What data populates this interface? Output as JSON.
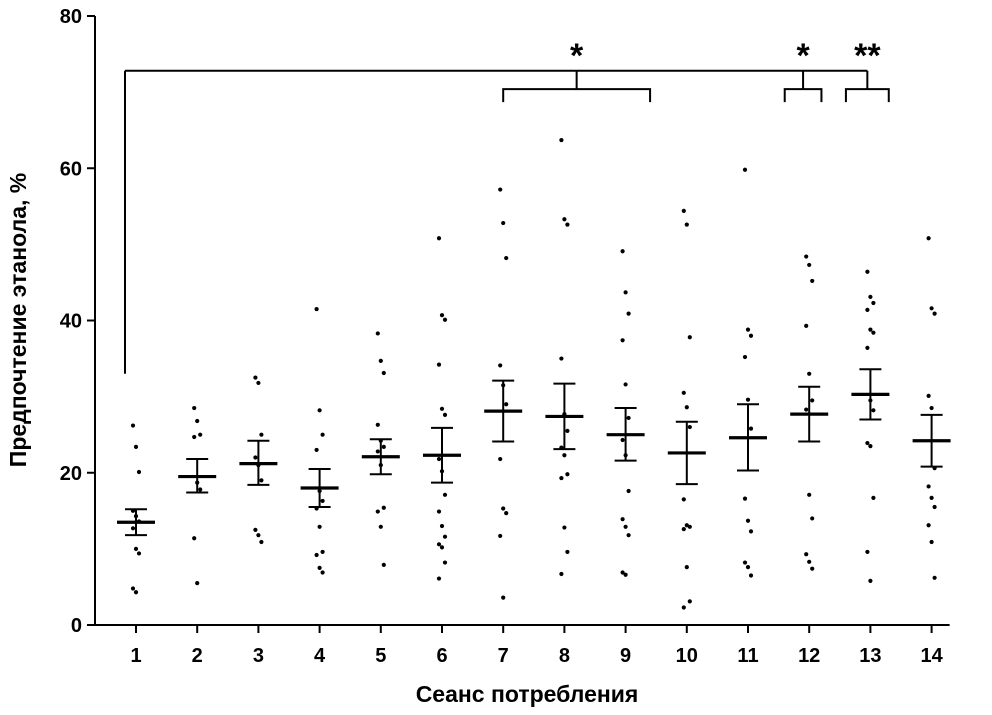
{
  "chart_data": {
    "type": "scatter",
    "xlabel": "Сеанс потребления",
    "ylabel": "Предпочтение этанола, %",
    "ylim": [
      0,
      80
    ],
    "yticks": [
      "0",
      "20",
      "40",
      "60",
      "80"
    ],
    "categories": [
      "1",
      "2",
      "3",
      "4",
      "5",
      "6",
      "7",
      "8",
      "9",
      "10",
      "11",
      "12",
      "13",
      "14"
    ],
    "means": [
      13.5,
      19.5,
      21.2,
      18.0,
      22.1,
      22.3,
      28.1,
      27.4,
      25.0,
      22.6,
      24.6,
      27.7,
      30.3,
      24.2
    ],
    "sem_upper": [
      15.2,
      21.8,
      24.2,
      20.5,
      24.4,
      25.9,
      32.1,
      31.7,
      28.5,
      26.7,
      29.0,
      31.3,
      33.6,
      27.6
    ],
    "sem_lower": [
      11.8,
      17.4,
      18.4,
      15.5,
      19.8,
      18.7,
      24.1,
      23.1,
      21.6,
      18.5,
      20.3,
      24.1,
      27.0,
      20.8
    ],
    "points": [
      [
        26.2,
        23.4,
        20.1,
        15.0,
        14.3,
        13.6,
        12.7,
        10.0,
        9.4,
        4.8,
        4.3
      ],
      [
        28.5,
        26.8,
        25.0,
        24.7,
        18.7,
        17.8,
        11.4,
        5.5
      ],
      [
        32.5,
        31.8,
        25.0,
        22.0,
        21.0,
        19.0,
        12.5,
        11.8,
        10.9
      ],
      [
        41.5,
        28.2,
        25.0,
        23.0,
        17.6,
        16.3,
        15.3,
        12.9,
        9.6,
        9.2,
        7.5,
        6.9
      ],
      [
        38.3,
        34.7,
        33.1,
        26.3,
        24.2,
        23.4,
        22.8,
        21.0,
        15.4,
        14.9,
        12.9,
        7.9
      ],
      [
        50.8,
        40.7,
        40.1,
        34.2,
        28.4,
        27.6,
        21.8,
        20.2,
        17.1,
        14.9,
        13.0,
        11.6,
        10.6,
        10.2,
        8.2,
        6.1
      ],
      [
        57.2,
        52.8,
        48.2,
        34.1,
        31.5,
        29.0,
        21.8,
        15.3,
        14.7,
        11.7,
        3.6
      ],
      [
        63.7,
        53.3,
        52.6,
        35.0,
        27.7,
        25.5,
        23.3,
        22.3,
        19.8,
        19.3,
        12.8,
        9.6,
        6.7
      ],
      [
        49.1,
        43.7,
        40.9,
        37.4,
        31.6,
        27.2,
        24.3,
        22.3,
        17.6,
        13.9,
        12.9,
        11.8,
        6.9,
        6.6
      ],
      [
        54.4,
        52.6,
        37.8,
        30.5,
        28.6,
        26.0,
        16.5,
        13.1,
        12.9,
        12.6,
        7.6,
        3.1,
        2.3
      ],
      [
        59.8,
        38.8,
        38.0,
        35.2,
        29.6,
        25.8,
        16.6,
        13.7,
        12.3,
        8.2,
        7.6,
        6.5
      ],
      [
        48.4,
        47.3,
        45.2,
        39.3,
        33.0,
        29.5,
        28.3,
        17.1,
        14.0,
        9.3,
        8.3,
        7.4
      ],
      [
        46.4,
        43.1,
        42.3,
        41.4,
        38.8,
        38.4,
        36.4,
        29.5,
        28.2,
        23.9,
        23.5,
        16.7,
        9.6,
        5.8
      ],
      [
        50.8,
        41.6,
        40.9,
        30.1,
        28.5,
        20.6,
        18.2,
        16.7,
        15.5,
        13.1,
        10.9,
        6.2
      ]
    ],
    "significance": {
      "main_stars": [
        "*",
        "*",
        "**"
      ],
      "main_from_y": 33.0,
      "main_top_y": 72.8,
      "groups": [
        {
          "from": 7,
          "to": 9.4,
          "y": 70.4,
          "label_index": 0
        },
        {
          "from": 11.6,
          "to": 12.2,
          "y": 70.4,
          "label_index": 1
        },
        {
          "from": 12.6,
          "to": 13.3,
          "y": 70.4,
          "label_index": 2
        }
      ]
    }
  }
}
